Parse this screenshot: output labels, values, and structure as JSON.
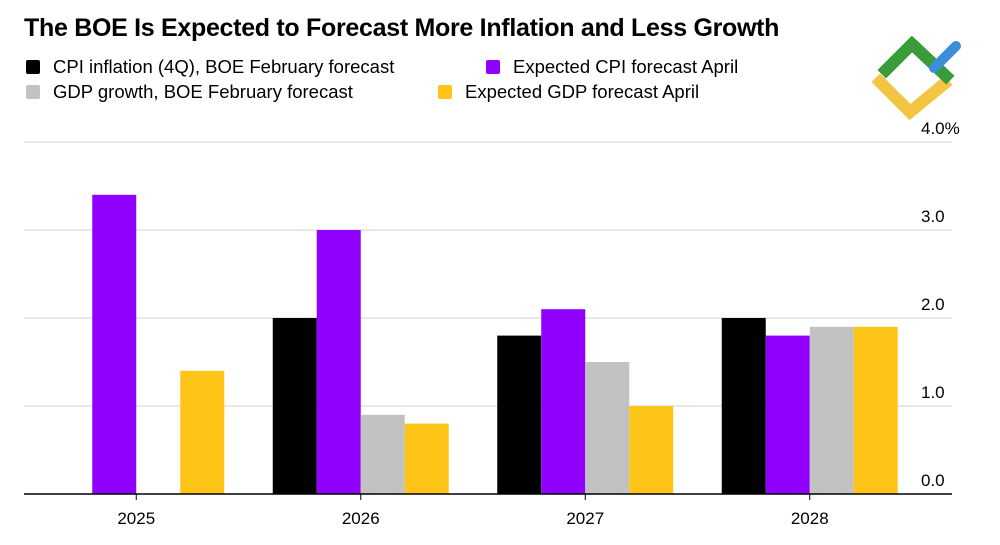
{
  "chart_data": {
    "type": "bar",
    "title": "The BOE Is Expected to Forecast More Inflation and Less Growth",
    "xlabel": "",
    "ylabel": "",
    "categories": [
      "2025",
      "2026",
      "2027",
      "2028"
    ],
    "series": [
      {
        "name": "CPI inflation (4Q), BOE February forecast",
        "color": "#000000",
        "values": [
          null,
          2.0,
          1.8,
          2.0
        ]
      },
      {
        "name": "Expected CPI forecast April",
        "color": "#8f00ff",
        "values": [
          3.4,
          3.0,
          2.1,
          1.8
        ]
      },
      {
        "name": "GDP growth, BOE February forecast",
        "color": "#c2c2c2",
        "values": [
          null,
          0.9,
          1.5,
          1.9
        ]
      },
      {
        "name": "Expected GDP forecast April",
        "color": "#fec518",
        "values": [
          1.4,
          0.8,
          1.0,
          1.9
        ]
      }
    ],
    "ylim": [
      0,
      4
    ],
    "yticks": [
      {
        "value": 4,
        "label": "4.0%"
      },
      {
        "value": 3,
        "label": "3.0"
      },
      {
        "value": 2,
        "label": "2.0"
      },
      {
        "value": 1,
        "label": "1.0"
      },
      {
        "value": 0,
        "label": "0.0"
      }
    ],
    "grid": true,
    "axis_side": "right",
    "legend_position": "top"
  },
  "logo": {
    "name": "brand-logo",
    "colors": {
      "green": "#3a9b3a",
      "yellow": "#f4c542",
      "blue": "#3b8fd9"
    }
  }
}
